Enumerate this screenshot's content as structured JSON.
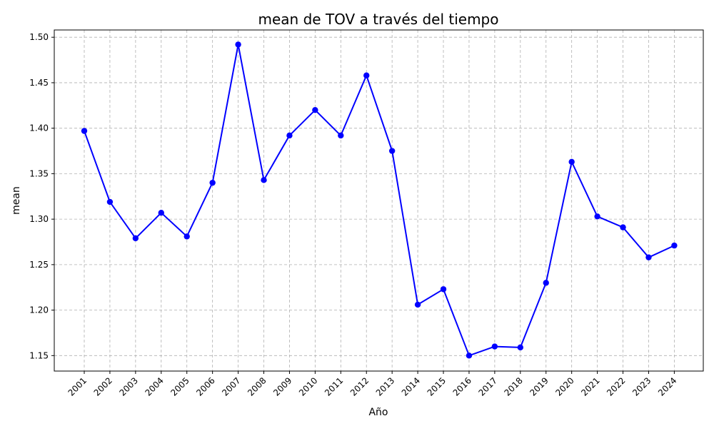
{
  "chart_data": {
    "type": "line",
    "title": "mean de TOV a través del tiempo",
    "xlabel": "Año",
    "ylabel": "mean",
    "categories": [
      "2001",
      "2002",
      "2003",
      "2004",
      "2005",
      "2006",
      "2007",
      "2008",
      "2009",
      "2010",
      "2011",
      "2012",
      "2013",
      "2014",
      "2015",
      "2016",
      "2017",
      "2018",
      "2019",
      "2020",
      "2021",
      "2022",
      "2023",
      "2024"
    ],
    "series": [
      {
        "name": "",
        "color": "#0000ff",
        "values": [
          1.397,
          1.319,
          1.279,
          1.307,
          1.281,
          1.34,
          1.492,
          1.343,
          1.392,
          1.42,
          1.392,
          1.458,
          1.375,
          1.206,
          1.223,
          1.15,
          1.16,
          1.159,
          1.23,
          1.363,
          1.303,
          1.291,
          1.258,
          1.271
        ]
      }
    ],
    "ylim": [
      1.133,
      1.508
    ],
    "yticks": [
      "1.15",
      "1.20",
      "1.25",
      "1.30",
      "1.35",
      "1.40",
      "1.45",
      "1.50"
    ],
    "grid": true,
    "grid_style": "dashed",
    "x_tick_rotation": "45deg",
    "legend": "none"
  }
}
